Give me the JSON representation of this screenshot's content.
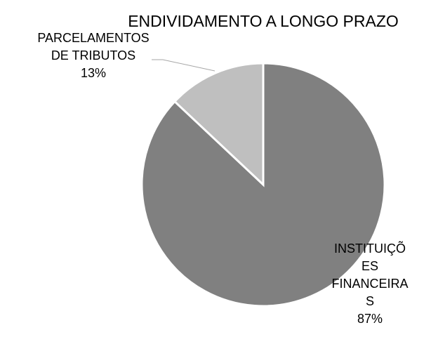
{
  "chart_data": {
    "type": "pie",
    "title": "ENDIVIDAMENTO A LONGO PRAZO",
    "categories": [
      "INSTITUIÇÕES FINANCEIRAS",
      "PARCELAMENTOS DE TRIBUTOS"
    ],
    "values": [
      87,
      13
    ],
    "value_labels": [
      "87%",
      "13%"
    ],
    "colors": [
      "#808080",
      "#bfbfbf"
    ]
  }
}
